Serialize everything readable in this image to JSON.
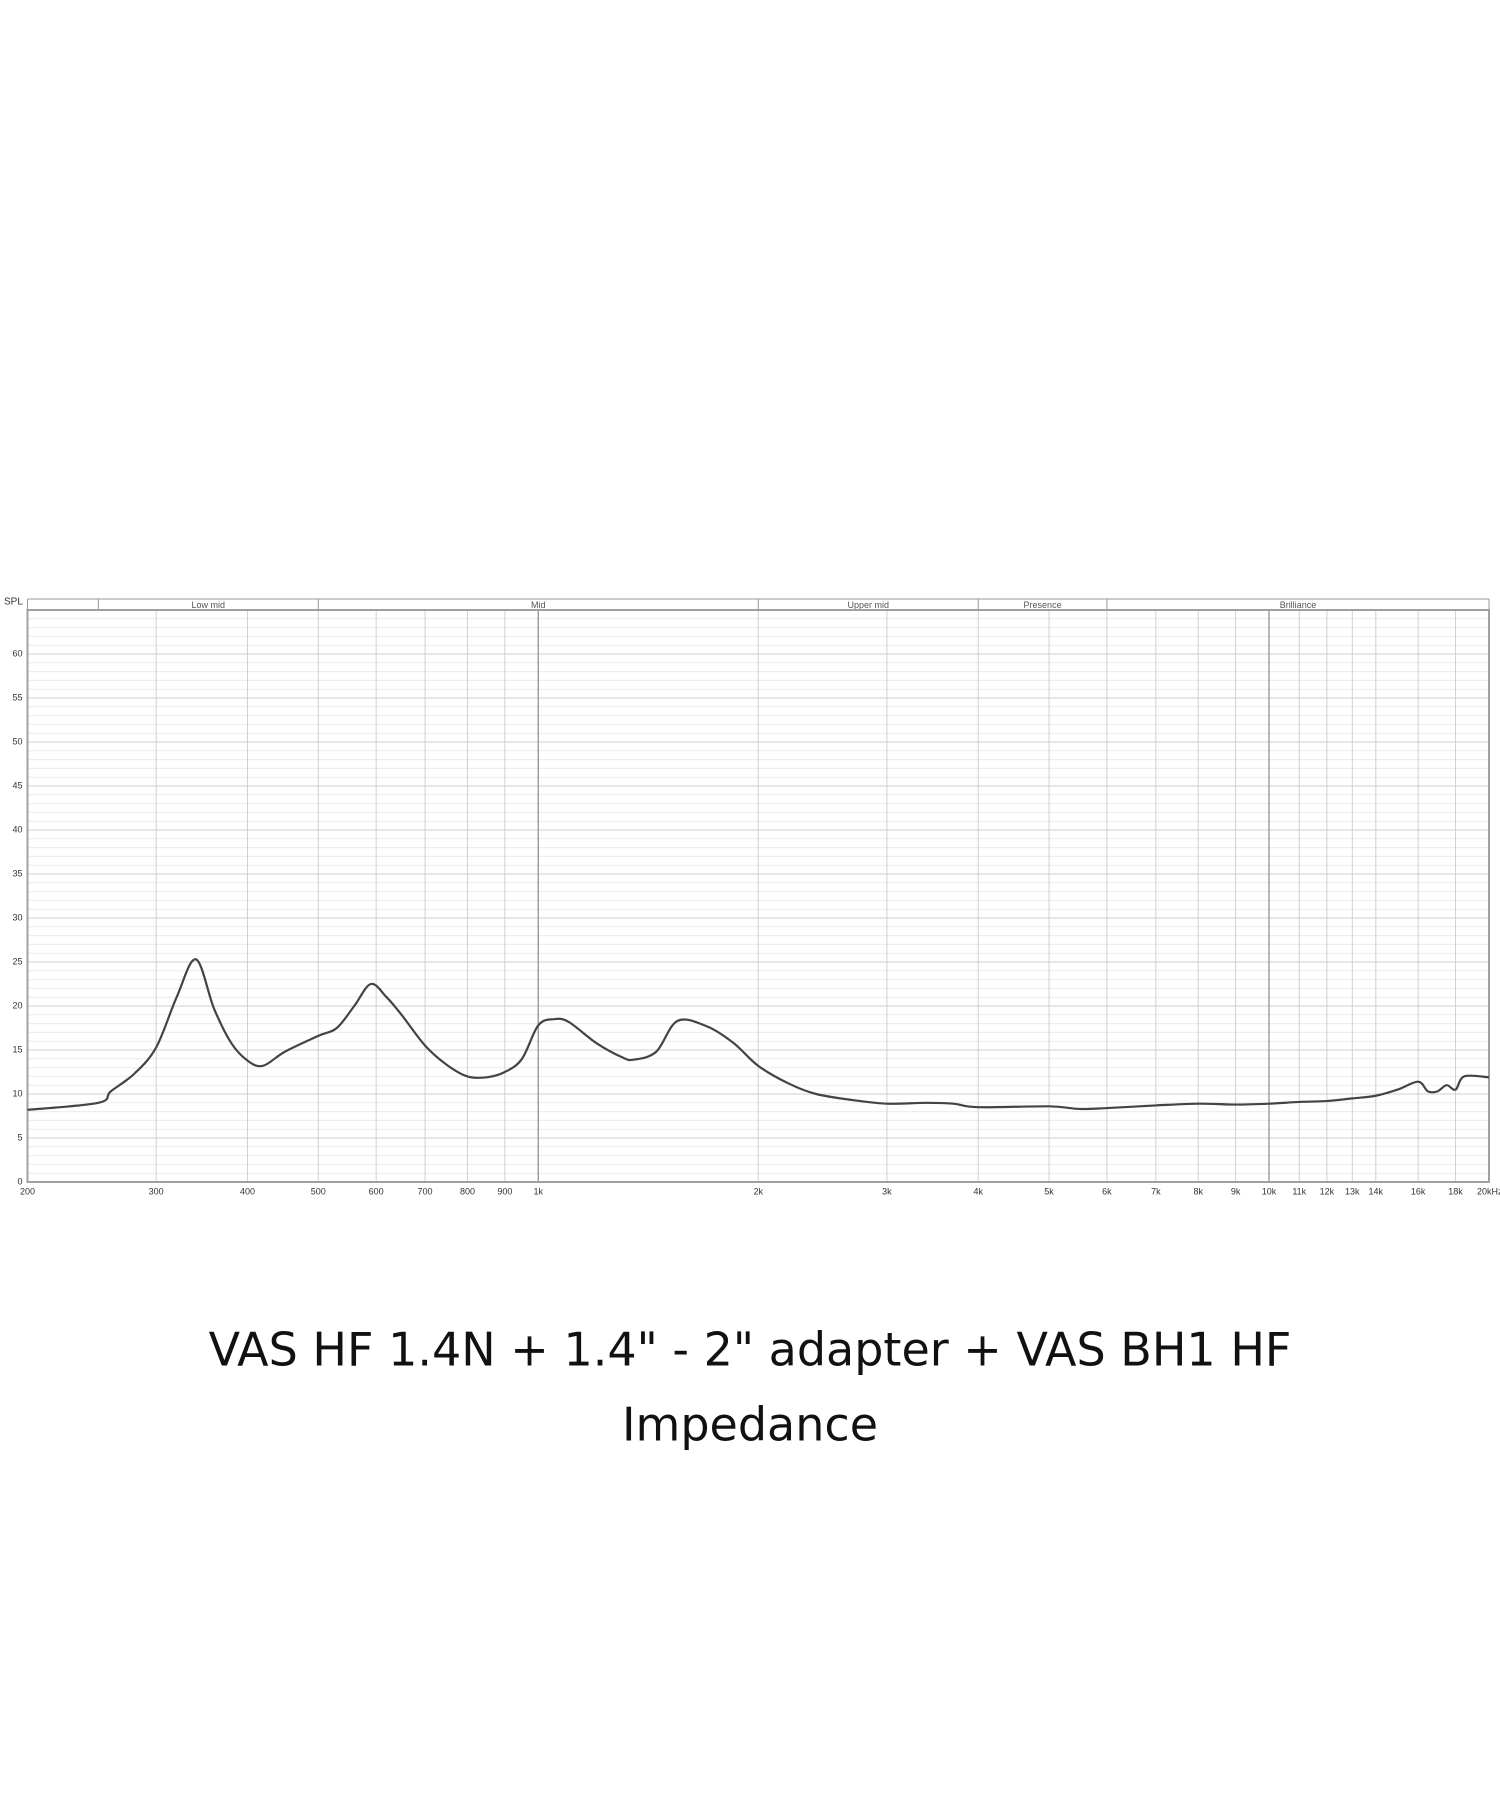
{
  "chart_data": {
    "type": "line",
    "title": "VAS HF 1.4N + 1.4\" - 2\" adapter + VAS BH1 HF",
    "subtitle": "Impedance",
    "ylabel": "SPL",
    "xscale": "log",
    "xlim": [
      200,
      20000
    ],
    "ylim": [
      0,
      65
    ],
    "yticks": [
      0,
      5,
      10,
      15,
      20,
      25,
      30,
      35,
      40,
      45,
      50,
      55,
      60
    ],
    "xticks": [
      200,
      300,
      400,
      500,
      600,
      700,
      800,
      900,
      {
        "value": 1000,
        "label": "1k"
      },
      {
        "value": 2000,
        "label": "2k"
      },
      {
        "value": 3000,
        "label": "3k"
      },
      {
        "value": 4000,
        "label": "4k"
      },
      {
        "value": 5000,
        "label": "5k"
      },
      {
        "value": 6000,
        "label": "6k"
      },
      {
        "value": 7000,
        "label": "7k"
      },
      {
        "value": 8000,
        "label": "8k"
      },
      {
        "value": 9000,
        "label": "9k"
      },
      {
        "value": 10000,
        "label": "10k"
      },
      {
        "value": 11000,
        "label": "11k"
      },
      {
        "value": 12000,
        "label": "12k"
      },
      {
        "value": 13000,
        "label": "13k"
      },
      {
        "value": 14000,
        "label": "14k"
      },
      {
        "value": 16000,
        "label": "16k"
      },
      {
        "value": 18000,
        "label": "18k"
      },
      {
        "value": 20000,
        "label": "20kHz"
      }
    ],
    "grid": true,
    "minor_grid": true,
    "band_edges": [
      200,
      250,
      500,
      2000,
      4000,
      6000,
      20000
    ],
    "band_labels": [
      null,
      "Low mid",
      "Mid",
      "Upper mid",
      "Presence",
      "Brilliance"
    ],
    "color": "#444444",
    "x": [
      200,
      250,
      260,
      280,
      300,
      320,
      340,
      360,
      380,
      400,
      420,
      450,
      500,
      530,
      560,
      590,
      620,
      650,
      700,
      750,
      800,
      850,
      900,
      950,
      1000,
      1050,
      1100,
      1200,
      1300,
      1350,
      1450,
      1550,
      1700,
      1850,
      2000,
      2200,
      2400,
      2700,
      3000,
      3400,
      3700,
      4000,
      5000,
      5500,
      6000,
      7000,
      8000,
      9000,
      10000,
      11000,
      12000,
      13000,
      14000,
      15000,
      16000,
      16500,
      17000,
      17500,
      18000,
      18500,
      20000
    ],
    "values": [
      8.2,
      9.0,
      10.3,
      12.3,
      15.3,
      21,
      25.3,
      19.7,
      15.8,
      13.8,
      13.2,
      14.8,
      16.6,
      17.5,
      20,
      22.5,
      21,
      19,
      15.5,
      13.3,
      12,
      11.9,
      12.5,
      14,
      17.8,
      18.5,
      18.2,
      15.8,
      14.2,
      13.9,
      14.8,
      18.3,
      17.7,
      15.8,
      13.2,
      11.2,
      10,
      9.3,
      8.9,
      9.0,
      8.9,
      8.5,
      8.6,
      8.3,
      8.4,
      8.7,
      8.9,
      8.8,
      8.9,
      9.1,
      9.2,
      9.5,
      9.8,
      10.5,
      11.4,
      10.3,
      10.3,
      11,
      10.5,
      12,
      11.9
    ]
  }
}
